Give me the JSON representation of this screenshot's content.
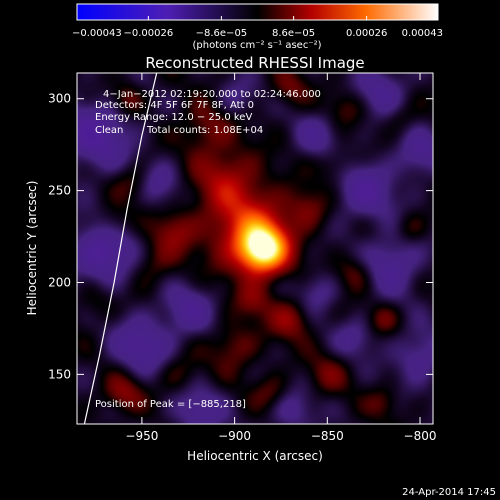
{
  "chart_data": {
    "type": "heatmap",
    "title": "Reconstructed RHESSI Image",
    "xlabel": "Heliocentric X (arcsec)",
    "ylabel": "Heliocentric Y (arcsec)",
    "xlim": [
      -985,
      -793
    ],
    "ylim": [
      123,
      314
    ],
    "x_ticks": [
      {
        "value": -950,
        "label": "−950"
      },
      {
        "value": -900,
        "label": "−900"
      },
      {
        "value": -850,
        "label": "−850"
      },
      {
        "value": -800,
        "label": "−800"
      }
    ],
    "y_ticks": [
      {
        "value": 150,
        "label": "150"
      },
      {
        "value": 200,
        "label": "200"
      },
      {
        "value": 250,
        "label": "250"
      },
      {
        "value": 300,
        "label": "300"
      }
    ],
    "colorbar": {
      "range": [
        -0.00043,
        0.00043
      ],
      "ticks": [
        {
          "value": -0.00043,
          "label": "−0.00043"
        },
        {
          "value": -0.00026,
          "label": "−0.00026"
        },
        {
          "value": -8.6e-05,
          "label": "−8.6e−05"
        },
        {
          "value": 8.6e-05,
          "label": "8.6e−05"
        },
        {
          "value": 0.00026,
          "label": "0.00026"
        },
        {
          "value": 0.00043,
          "label": "0.00043"
        }
      ],
      "units": "(photons cm⁻² s⁻¹ asec⁻²)"
    },
    "annotations": {
      "time": "4−Jan−2012 02:19:20.000 to 02:24:46.000",
      "detectors": "Detectors: 4F 5F 6F 7F 8F, Att 0",
      "energy": "Energy Range: 12.0 − 25.0 keV",
      "algorithm": "Clean",
      "counts": "Total counts: 1.08E+04",
      "peak": "Position of Peak = [−885,218]"
    },
    "peak": {
      "x": -885,
      "y": 218
    },
    "limb_curve": [
      {
        "x": -981,
        "y": 123
      },
      {
        "x": -973,
        "y": 160
      },
      {
        "x": -965,
        "y": 200
      },
      {
        "x": -958,
        "y": 240
      },
      {
        "x": -950,
        "y": 280
      },
      {
        "x": -942,
        "y": 314
      }
    ],
    "blobs": [
      {
        "x": -885,
        "y": 218,
        "v": 0.00043,
        "s": 9
      },
      {
        "x": -893,
        "y": 230,
        "v": 0.0002,
        "s": 16
      },
      {
        "x": -905,
        "y": 258,
        "v": 0.00012,
        "s": 12
      },
      {
        "x": -915,
        "y": 285,
        "v": 0.0001,
        "s": 10
      },
      {
        "x": -932,
        "y": 228,
        "v": 0.00011,
        "s": 8
      },
      {
        "x": -945,
        "y": 210,
        "v": 9e-05,
        "s": 9
      },
      {
        "x": -955,
        "y": 255,
        "v": 8e-05,
        "s": 7
      },
      {
        "x": -965,
        "y": 232,
        "v": 8e-05,
        "s": 7
      },
      {
        "x": -958,
        "y": 300,
        "v": 0.0001,
        "s": 6
      },
      {
        "x": -975,
        "y": 190,
        "v": 7e-05,
        "s": 8
      },
      {
        "x": -860,
        "y": 240,
        "v": 0.0001,
        "s": 8
      },
      {
        "x": -845,
        "y": 265,
        "v": 8e-05,
        "s": 7
      },
      {
        "x": -835,
        "y": 205,
        "v": 0.0001,
        "s": 7
      },
      {
        "x": -820,
        "y": 180,
        "v": 8e-05,
        "s": 6
      },
      {
        "x": -805,
        "y": 230,
        "v": 7e-05,
        "s": 6
      },
      {
        "x": -870,
        "y": 180,
        "v": 0.00012,
        "s": 8
      },
      {
        "x": -900,
        "y": 165,
        "v": 0.0001,
        "s": 9
      },
      {
        "x": -930,
        "y": 150,
        "v": 8e-05,
        "s": 8
      },
      {
        "x": -960,
        "y": 140,
        "v": 0.00012,
        "s": 8
      },
      {
        "x": -880,
        "y": 140,
        "v": 9e-05,
        "s": 7
      },
      {
        "x": -850,
        "y": 150,
        "v": 8e-05,
        "s": 8
      },
      {
        "x": -820,
        "y": 135,
        "v": 7e-05,
        "s": 6
      },
      {
        "x": -840,
        "y": 295,
        "v": 7e-05,
        "s": 7
      },
      {
        "x": -870,
        "y": 305,
        "v": 8e-05,
        "s": 7
      },
      {
        "x": -810,
        "y": 290,
        "v": 6e-05,
        "s": 6
      },
      {
        "x": -890,
        "y": 190,
        "v": 9e-05,
        "s": 7
      },
      {
        "x": -975,
        "y": 280,
        "v": -0.00016,
        "s": 14
      },
      {
        "x": -970,
        "y": 215,
        "v": -0.00018,
        "s": 13
      },
      {
        "x": -950,
        "y": 165,
        "v": -0.00014,
        "s": 12
      },
      {
        "x": -925,
        "y": 185,
        "v": -0.00012,
        "s": 10
      },
      {
        "x": -920,
        "y": 130,
        "v": -0.00012,
        "s": 10
      },
      {
        "x": -870,
        "y": 130,
        "v": -0.0001,
        "s": 9
      },
      {
        "x": -830,
        "y": 250,
        "v": -0.00014,
        "s": 12
      },
      {
        "x": -815,
        "y": 210,
        "v": -0.00014,
        "s": 11
      },
      {
        "x": -800,
        "y": 160,
        "v": -0.00012,
        "s": 10
      },
      {
        "x": -855,
        "y": 280,
        "v": -0.0001,
        "s": 9
      },
      {
        "x": -820,
        "y": 305,
        "v": -0.00012,
        "s": 10
      },
      {
        "x": -855,
        "y": 195,
        "v": -0.0001,
        "s": 8
      },
      {
        "x": -835,
        "y": 170,
        "v": -9e-05,
        "s": 8
      },
      {
        "x": -900,
        "y": 300,
        "v": -8e-05,
        "s": 8
      },
      {
        "x": -940,
        "y": 255,
        "v": -0.0001,
        "s": 8
      },
      {
        "x": -800,
        "y": 270,
        "v": -0.00012,
        "s": 9
      }
    ]
  },
  "footer": {
    "timestamp": "24-Apr-2014 17:45"
  }
}
